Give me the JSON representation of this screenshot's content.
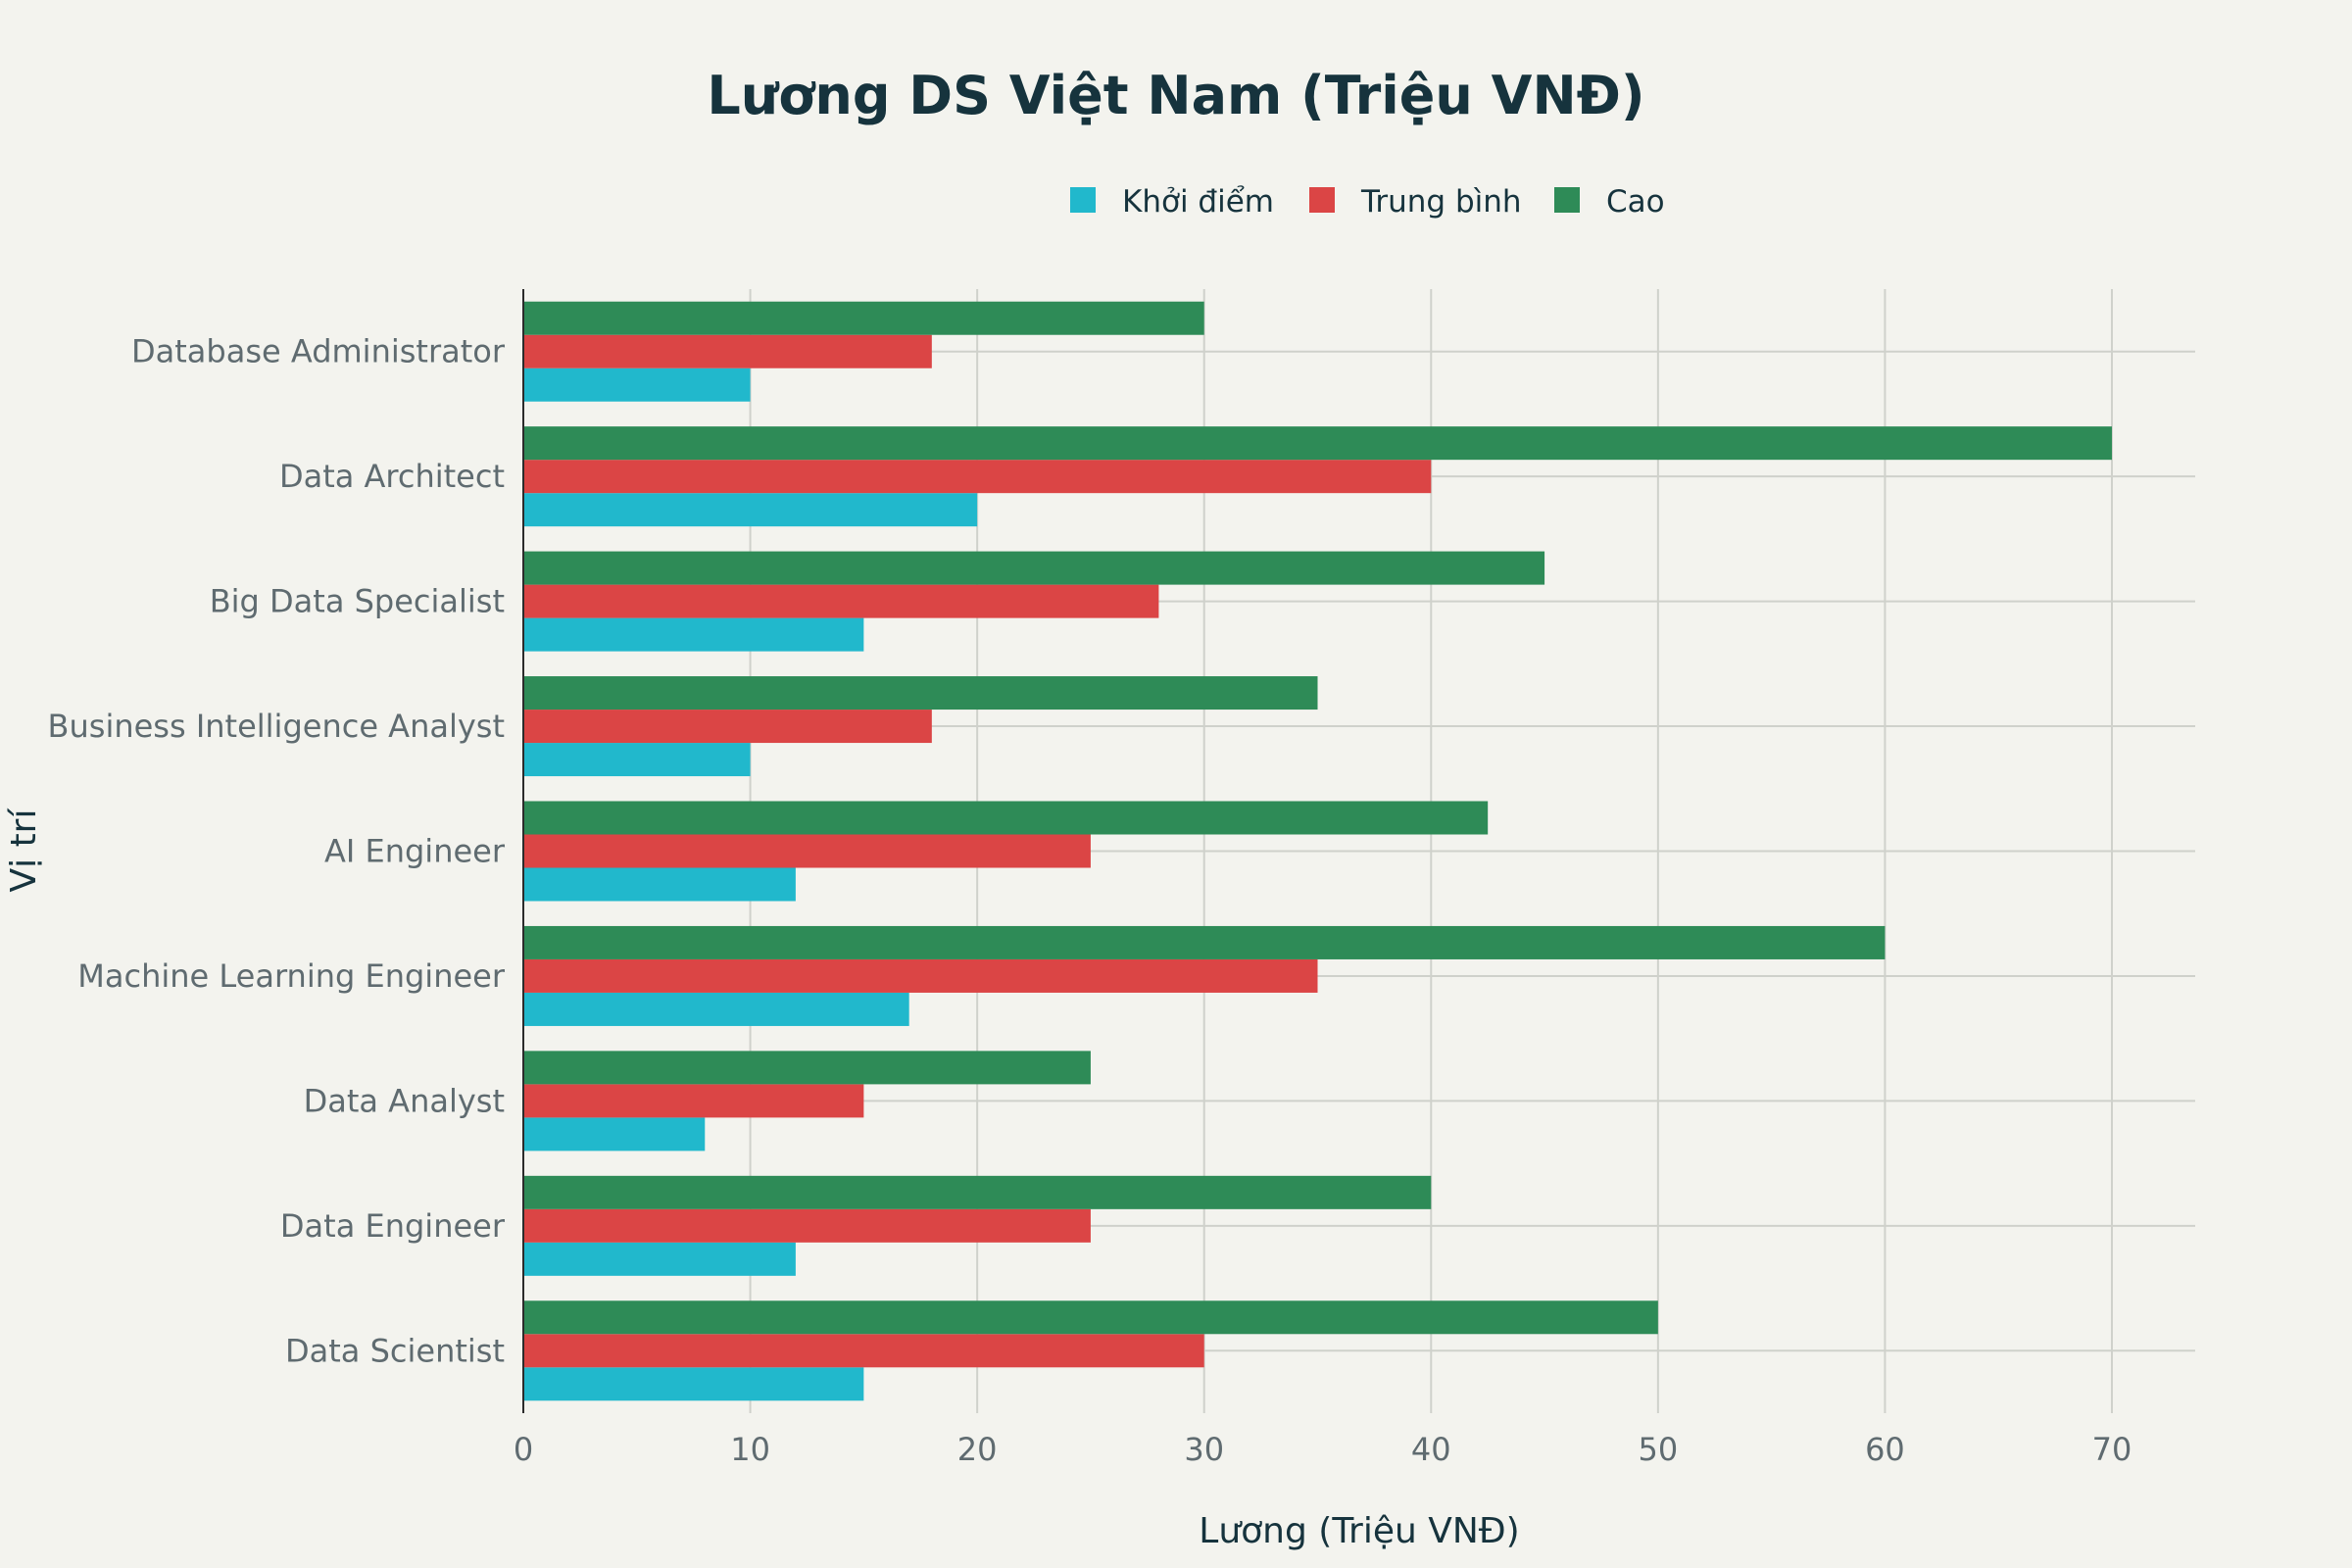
{
  "chart_data": {
    "type": "bar",
    "orientation": "horizontal",
    "title": "Lương DS Việt Nam (Triệu VNĐ)",
    "xlabel": "Lương (Triệu VNĐ)",
    "ylabel": "Vị trí",
    "xlim": [
      0,
      74
    ],
    "xticks": [
      0,
      10,
      20,
      30,
      40,
      50,
      60,
      70
    ],
    "grid": true,
    "legend_position": "top-center",
    "categories": [
      "Data Scientist",
      "Data Engineer",
      "Data Analyst",
      "Machine Learning Engineer",
      "AI Engineer",
      "Business Intelligence Analyst",
      "Big Data Specialist",
      "Data Architect",
      "Database Administrator"
    ],
    "series": [
      {
        "name": "Khởi điểm",
        "color": "#21b8cc",
        "values": [
          15,
          12,
          8,
          17,
          12,
          10,
          15,
          20,
          10
        ]
      },
      {
        "name": "Trung bình",
        "color": "#db4545",
        "values": [
          30,
          25,
          15,
          35,
          25,
          18,
          28,
          40,
          18
        ]
      },
      {
        "name": "Cao",
        "color": "#2e8b57",
        "values": [
          50,
          40,
          25,
          60,
          42.5,
          35,
          45,
          70,
          30
        ]
      }
    ]
  }
}
